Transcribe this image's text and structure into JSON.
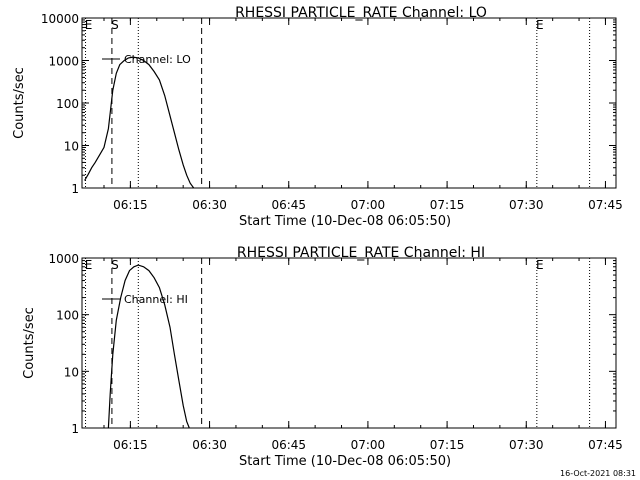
{
  "footer": {
    "timestamp": "16-Oct-2021 08:31"
  },
  "chart_data": [
    {
      "type": "line",
      "title": "RHESSI PARTICLE_RATE Channel: LO",
      "xlabel": "Start Time (10-Dec-08 06:05:50)",
      "ylabel": "Counts/sec",
      "yscale": "log",
      "xlim": [
        "06:05:50",
        "07:47:00"
      ],
      "ylim": [
        1,
        10000
      ],
      "x_ticks": [
        "06:15",
        "06:30",
        "06:45",
        "07:00",
        "07:15",
        "07:30",
        "07:45"
      ],
      "y_ticks": [
        {
          "value": 1,
          "label": "1"
        },
        {
          "value": 10,
          "label": "10"
        },
        {
          "value": 100,
          "label": "100"
        },
        {
          "value": 1000,
          "label": "1000"
        },
        {
          "value": 10000,
          "label": "10000"
        }
      ],
      "legend": {
        "label": "Channel: LO",
        "placement": "top-left"
      },
      "markers": [
        {
          "time": "06:06:30",
          "style": "dotted",
          "label": "E"
        },
        {
          "time": "06:11:30",
          "style": "dashed",
          "label": "S"
        },
        {
          "time": "06:16:30",
          "style": "dotted",
          "label": ""
        },
        {
          "time": "06:28:30",
          "style": "dashed",
          "label": ""
        },
        {
          "time": "07:32:00",
          "style": "dotted",
          "label": "E"
        },
        {
          "time": "07:42:00",
          "style": "dotted",
          "label": ""
        }
      ],
      "series": [
        {
          "name": "Channel: LO",
          "x": [
            "06:06:20",
            "06:07:00",
            "06:07:40",
            "06:08:20",
            "06:09:10",
            "06:10:00",
            "06:10:50",
            "06:11:40",
            "06:12:20",
            "06:13:00",
            "06:13:50",
            "06:14:40",
            "06:15:30",
            "06:16:30",
            "06:17:30",
            "06:18:30",
            "06:19:30",
            "06:20:30",
            "06:21:30",
            "06:22:30",
            "06:23:20",
            "06:24:10",
            "06:25:00",
            "06:25:40",
            "06:26:20",
            "06:27:00"
          ],
          "y": [
            1.5,
            2.1,
            3,
            4,
            6,
            9,
            25,
            200,
            500,
            800,
            1000,
            1150,
            1200,
            1150,
            1000,
            800,
            550,
            350,
            150,
            50,
            20,
            8,
            3.5,
            2,
            1.3,
            1
          ]
        }
      ]
    },
    {
      "type": "line",
      "title": "RHESSI PARTICLE_RATE Channel: HI",
      "xlabel": "Start Time (10-Dec-08 06:05:50)",
      "ylabel": "Counts/sec",
      "yscale": "log",
      "xlim": [
        "06:05:50",
        "07:47:00"
      ],
      "ylim": [
        1,
        1000
      ],
      "x_ticks": [
        "06:15",
        "06:30",
        "06:45",
        "07:00",
        "07:15",
        "07:30",
        "07:45"
      ],
      "y_ticks": [
        {
          "value": 1,
          "label": "1"
        },
        {
          "value": 10,
          "label": "10"
        },
        {
          "value": 100,
          "label": "100"
        },
        {
          "value": 1000,
          "label": "1000"
        }
      ],
      "legend": {
        "label": "Channel: HI",
        "placement": "top-left"
      },
      "markers": [
        {
          "time": "06:06:30",
          "style": "dotted",
          "label": "E"
        },
        {
          "time": "06:11:30",
          "style": "dashed",
          "label": "S"
        },
        {
          "time": "06:16:30",
          "style": "dotted",
          "label": ""
        },
        {
          "time": "06:28:30",
          "style": "dashed",
          "label": ""
        },
        {
          "time": "07:32:00",
          "style": "dotted",
          "label": "E"
        },
        {
          "time": "07:42:00",
          "style": "dotted",
          "label": ""
        }
      ],
      "series": [
        {
          "name": "Channel: HI",
          "x": [
            "06:10:50",
            "06:11:10",
            "06:11:40",
            "06:12:20",
            "06:13:10",
            "06:14:00",
            "06:14:50",
            "06:15:40",
            "06:16:30",
            "06:17:30",
            "06:18:30",
            "06:19:30",
            "06:20:30",
            "06:21:30",
            "06:22:30",
            "06:23:20",
            "06:24:10",
            "06:25:00",
            "06:25:40",
            "06:26:10"
          ],
          "y": [
            1,
            4,
            20,
            80,
            200,
            400,
            600,
            700,
            750,
            700,
            600,
            450,
            300,
            150,
            60,
            20,
            7,
            2.5,
            1.3,
            1
          ]
        }
      ]
    }
  ]
}
